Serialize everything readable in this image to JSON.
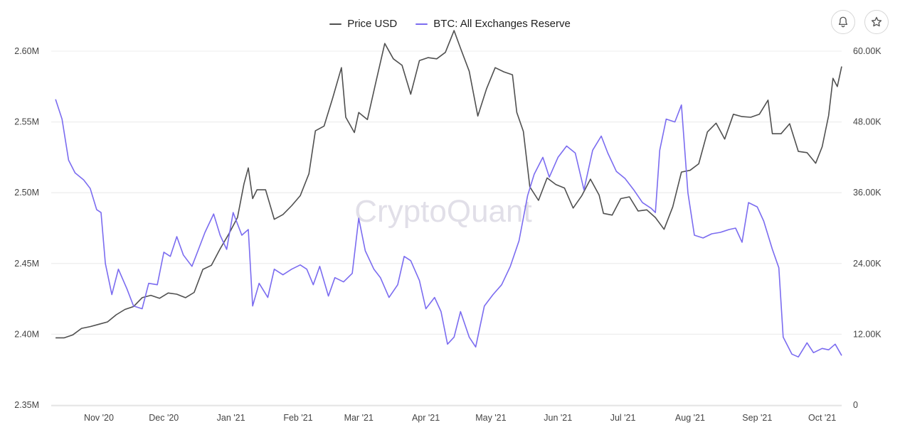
{
  "controls": {
    "bell_icon": "bell-icon",
    "star_icon": "star-icon"
  },
  "watermark": "CryptoQuant",
  "chart_data": {
    "type": "line",
    "title": "",
    "legend_position": "top-center",
    "grid": true,
    "x_ticks": [
      "Nov '20",
      "Dec '20",
      "Jan '21",
      "Feb '21",
      "Mar '21",
      "Apr '21",
      "May '21",
      "Jun '21",
      "Jul '21",
      "Aug '21",
      "Sep '21",
      "Oct '21"
    ],
    "x_range": [
      "2020-10-10",
      "2021-10-10"
    ],
    "y_left": {
      "label": "",
      "range": [
        2350000,
        2600000
      ],
      "ticks": [
        "2.35M",
        "2.40M",
        "2.45M",
        "2.50M",
        "2.55M",
        "2.60M"
      ],
      "tick_values": [
        2350000,
        2400000,
        2450000,
        2500000,
        2550000,
        2600000
      ]
    },
    "y_right": {
      "label": "",
      "range": [
        0,
        60000
      ],
      "ticks": [
        "0",
        "12.00K",
        "24.00K",
        "36.00K",
        "48.00K",
        "60.00K"
      ],
      "tick_values": [
        0,
        12000,
        24000,
        36000,
        48000,
        60000
      ]
    },
    "series": [
      {
        "name": "Price USD",
        "color": "#505050",
        "axis": "right",
        "points": [
          [
            "2020-10-12",
            11400
          ],
          [
            "2020-10-16",
            11400
          ],
          [
            "2020-10-20",
            11900
          ],
          [
            "2020-10-24",
            13000
          ],
          [
            "2020-10-28",
            13300
          ],
          [
            "2020-11-01",
            13700
          ],
          [
            "2020-11-05",
            14100
          ],
          [
            "2020-11-09",
            15300
          ],
          [
            "2020-11-13",
            16200
          ],
          [
            "2020-11-17",
            16700
          ],
          [
            "2020-11-21",
            18200
          ],
          [
            "2020-11-25",
            18600
          ],
          [
            "2020-11-29",
            18100
          ],
          [
            "2020-12-03",
            19000
          ],
          [
            "2020-12-07",
            18800
          ],
          [
            "2020-12-11",
            18200
          ],
          [
            "2020-12-15",
            19100
          ],
          [
            "2020-12-19",
            23000
          ],
          [
            "2020-12-23",
            23700
          ],
          [
            "2020-12-27",
            26500
          ],
          [
            "2020-12-31",
            29000
          ],
          [
            "2021-01-04",
            31800
          ],
          [
            "2021-01-07",
            37500
          ],
          [
            "2021-01-09",
            40200
          ],
          [
            "2021-01-11",
            35000
          ],
          [
            "2021-01-13",
            36500
          ],
          [
            "2021-01-17",
            36500
          ],
          [
            "2021-01-21",
            31500
          ],
          [
            "2021-01-25",
            32300
          ],
          [
            "2021-01-29",
            33800
          ],
          [
            "2021-02-02",
            35500
          ],
          [
            "2021-02-06",
            39200
          ],
          [
            "2021-02-09",
            46500
          ],
          [
            "2021-02-13",
            47300
          ],
          [
            "2021-02-17",
            52100
          ],
          [
            "2021-02-21",
            57200
          ],
          [
            "2021-02-23",
            48800
          ],
          [
            "2021-02-27",
            46200
          ],
          [
            "2021-03-01",
            49600
          ],
          [
            "2021-03-05",
            48400
          ],
          [
            "2021-03-09",
            54900
          ],
          [
            "2021-03-13",
            61300
          ],
          [
            "2021-03-17",
            58700
          ],
          [
            "2021-03-21",
            57600
          ],
          [
            "2021-03-25",
            52700
          ],
          [
            "2021-03-29",
            58400
          ],
          [
            "2021-04-02",
            58900
          ],
          [
            "2021-04-06",
            58700
          ],
          [
            "2021-04-10",
            59800
          ],
          [
            "2021-04-14",
            63500
          ],
          [
            "2021-04-17",
            60500
          ],
          [
            "2021-04-21",
            56600
          ],
          [
            "2021-04-25",
            49000
          ],
          [
            "2021-04-29",
            53600
          ],
          [
            "2021-05-03",
            57200
          ],
          [
            "2021-05-07",
            56500
          ],
          [
            "2021-05-11",
            56000
          ],
          [
            "2021-05-13",
            49600
          ],
          [
            "2021-05-16",
            46400
          ],
          [
            "2021-05-19",
            37000
          ],
          [
            "2021-05-23",
            34700
          ],
          [
            "2021-05-27",
            38500
          ],
          [
            "2021-05-31",
            37400
          ],
          [
            "2021-06-04",
            36800
          ],
          [
            "2021-06-08",
            33400
          ],
          [
            "2021-06-12",
            35500
          ],
          [
            "2021-06-16",
            38300
          ],
          [
            "2021-06-20",
            35600
          ],
          [
            "2021-06-22",
            32500
          ],
          [
            "2021-06-26",
            32200
          ],
          [
            "2021-06-30",
            35000
          ],
          [
            "2021-07-04",
            35300
          ],
          [
            "2021-07-08",
            32900
          ],
          [
            "2021-07-12",
            33100
          ],
          [
            "2021-07-16",
            31800
          ],
          [
            "2021-07-20",
            29800
          ],
          [
            "2021-07-24",
            33600
          ],
          [
            "2021-07-28",
            39500
          ],
          [
            "2021-08-01",
            39800
          ],
          [
            "2021-08-05",
            40900
          ],
          [
            "2021-08-09",
            46300
          ],
          [
            "2021-08-13",
            47800
          ],
          [
            "2021-08-17",
            45100
          ],
          [
            "2021-08-21",
            49300
          ],
          [
            "2021-08-25",
            48900
          ],
          [
            "2021-08-29",
            48800
          ],
          [
            "2021-09-02",
            49300
          ],
          [
            "2021-09-06",
            51700
          ],
          [
            "2021-09-08",
            46000
          ],
          [
            "2021-09-12",
            46000
          ],
          [
            "2021-09-16",
            47700
          ],
          [
            "2021-09-20",
            43000
          ],
          [
            "2021-09-24",
            42800
          ],
          [
            "2021-09-28",
            41000
          ],
          [
            "2021-10-01",
            43800
          ],
          [
            "2021-10-04",
            49100
          ],
          [
            "2021-10-06",
            55400
          ],
          [
            "2021-10-08",
            54000
          ],
          [
            "2021-10-10",
            57400
          ]
        ]
      },
      {
        "name": "BTC: All Exchanges Reserve",
        "color": "#7b6cf0",
        "axis": "left",
        "points": [
          [
            "2020-10-12",
            2566000
          ],
          [
            "2020-10-15",
            2552000
          ],
          [
            "2020-10-18",
            2523000
          ],
          [
            "2020-10-21",
            2514000
          ],
          [
            "2020-10-25",
            2509000
          ],
          [
            "2020-10-28",
            2503000
          ],
          [
            "2020-10-31",
            2488000
          ],
          [
            "2020-11-02",
            2486000
          ],
          [
            "2020-11-04",
            2450000
          ],
          [
            "2020-11-07",
            2428000
          ],
          [
            "2020-11-10",
            2446000
          ],
          [
            "2020-11-14",
            2432000
          ],
          [
            "2020-11-17",
            2420000
          ],
          [
            "2020-11-21",
            2418000
          ],
          [
            "2020-11-24",
            2436000
          ],
          [
            "2020-11-28",
            2435000
          ],
          [
            "2020-12-01",
            2458000
          ],
          [
            "2020-12-04",
            2455000
          ],
          [
            "2020-12-07",
            2469000
          ],
          [
            "2020-12-10",
            2456000
          ],
          [
            "2020-12-14",
            2448000
          ],
          [
            "2020-12-17",
            2460000
          ],
          [
            "2020-12-20",
            2472000
          ],
          [
            "2020-12-24",
            2485000
          ],
          [
            "2020-12-27",
            2470000
          ],
          [
            "2020-12-30",
            2460000
          ],
          [
            "2021-01-02",
            2486000
          ],
          [
            "2021-01-06",
            2470000
          ],
          [
            "2021-01-09",
            2474000
          ],
          [
            "2021-01-11",
            2420000
          ],
          [
            "2021-01-14",
            2436000
          ],
          [
            "2021-01-18",
            2426000
          ],
          [
            "2021-01-21",
            2446000
          ],
          [
            "2021-01-25",
            2442000
          ],
          [
            "2021-01-29",
            2446000
          ],
          [
            "2021-02-02",
            2449000
          ],
          [
            "2021-02-05",
            2446000
          ],
          [
            "2021-02-08",
            2435000
          ],
          [
            "2021-02-11",
            2448000
          ],
          [
            "2021-02-15",
            2427000
          ],
          [
            "2021-02-18",
            2440000
          ],
          [
            "2021-02-22",
            2437000
          ],
          [
            "2021-02-26",
            2443000
          ],
          [
            "2021-03-01",
            2482000
          ],
          [
            "2021-03-04",
            2459000
          ],
          [
            "2021-03-08",
            2446000
          ],
          [
            "2021-03-11",
            2440000
          ],
          [
            "2021-03-15",
            2426000
          ],
          [
            "2021-03-19",
            2435000
          ],
          [
            "2021-03-22",
            2455000
          ],
          [
            "2021-03-25",
            2452000
          ],
          [
            "2021-03-29",
            2438000
          ],
          [
            "2021-04-01",
            2418000
          ],
          [
            "2021-04-05",
            2426000
          ],
          [
            "2021-04-08",
            2416000
          ],
          [
            "2021-04-11",
            2393000
          ],
          [
            "2021-04-14",
            2398000
          ],
          [
            "2021-04-17",
            2416000
          ],
          [
            "2021-04-21",
            2398000
          ],
          [
            "2021-04-24",
            2391000
          ],
          [
            "2021-04-28",
            2420000
          ],
          [
            "2021-05-02",
            2428000
          ],
          [
            "2021-05-06",
            2435000
          ],
          [
            "2021-05-10",
            2448000
          ],
          [
            "2021-05-14",
            2466000
          ],
          [
            "2021-05-18",
            2498000
          ],
          [
            "2021-05-21",
            2513000
          ],
          [
            "2021-05-25",
            2525000
          ],
          [
            "2021-05-28",
            2511000
          ],
          [
            "2021-06-01",
            2525000
          ],
          [
            "2021-06-05",
            2533000
          ],
          [
            "2021-06-09",
            2528000
          ],
          [
            "2021-06-13",
            2502000
          ],
          [
            "2021-06-17",
            2530000
          ],
          [
            "2021-06-21",
            2540000
          ],
          [
            "2021-06-24",
            2528000
          ],
          [
            "2021-06-28",
            2515000
          ],
          [
            "2021-07-02",
            2510000
          ],
          [
            "2021-07-06",
            2502000
          ],
          [
            "2021-07-10",
            2493000
          ],
          [
            "2021-07-14",
            2489000
          ],
          [
            "2021-07-16",
            2486000
          ],
          [
            "2021-07-18",
            2530000
          ],
          [
            "2021-07-21",
            2552000
          ],
          [
            "2021-07-25",
            2550000
          ],
          [
            "2021-07-28",
            2562000
          ],
          [
            "2021-07-31",
            2500000
          ],
          [
            "2021-08-03",
            2470000
          ],
          [
            "2021-08-07",
            2468000
          ],
          [
            "2021-08-11",
            2471000
          ],
          [
            "2021-08-15",
            2472000
          ],
          [
            "2021-08-19",
            2474000
          ],
          [
            "2021-08-22",
            2475000
          ],
          [
            "2021-08-25",
            2465000
          ],
          [
            "2021-08-28",
            2493000
          ],
          [
            "2021-09-01",
            2490000
          ],
          [
            "2021-09-04",
            2480000
          ],
          [
            "2021-09-08",
            2460000
          ],
          [
            "2021-09-11",
            2447000
          ],
          [
            "2021-09-13",
            2398000
          ],
          [
            "2021-09-17",
            2386000
          ],
          [
            "2021-09-20",
            2384000
          ],
          [
            "2021-09-24",
            2394000
          ],
          [
            "2021-09-27",
            2387000
          ],
          [
            "2021-10-01",
            2390000
          ],
          [
            "2021-10-04",
            2389000
          ],
          [
            "2021-10-07",
            2393000
          ],
          [
            "2021-10-10",
            2385000
          ]
        ]
      }
    ]
  }
}
